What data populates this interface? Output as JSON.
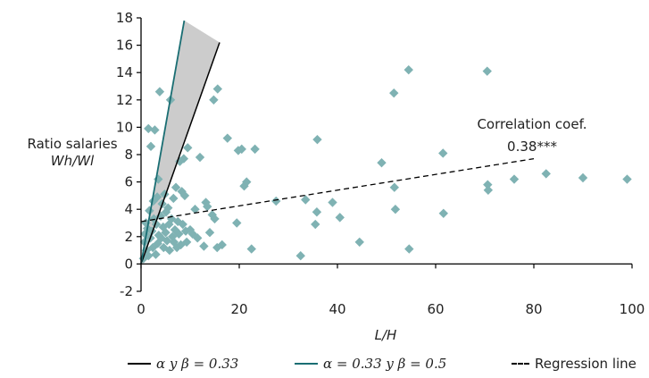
{
  "chart_data": {
    "type": "scatter",
    "xlabel": "L/H",
    "ylabel_line1": "Ratio salaries",
    "ylabel_line2": "Wh/Wl",
    "xlim": [
      0,
      100
    ],
    "ylim": [
      -2,
      18
    ],
    "x_ticks": [
      "0",
      "20",
      "40",
      "60",
      "80",
      "100"
    ],
    "y_ticks": [
      "-2",
      "0",
      "2",
      "4",
      "6",
      "8",
      "10",
      "12",
      "14",
      "16",
      "18"
    ],
    "grid": false,
    "legend_position": "bottom",
    "colors": {
      "points": "#7fb2b3",
      "line_033": "#000000",
      "line_033_05": "#1a6e73",
      "regression": "#000000",
      "shaded": "#cccccc"
    },
    "annotation": {
      "line1": "Correlation coef.",
      "line2": "0.38***"
    },
    "legend": [
      {
        "label": "α y β = 0.33",
        "style": "solid",
        "color": "#000000"
      },
      {
        "label": "α = 0.33 y β = 0.5",
        "style": "solid",
        "color": "#1a6e73"
      },
      {
        "label": "Regression line",
        "style": "dashed",
        "color": "#000000"
      }
    ],
    "lines": {
      "alpha_beta_033": {
        "x": [
          0,
          16
        ],
        "y": [
          0,
          16.2
        ]
      },
      "alpha_033_beta_05": {
        "x": [
          0,
          8.8
        ],
        "y": [
          0,
          17.8
        ]
      },
      "regression": {
        "x": [
          0,
          80
        ],
        "y": [
          3.1,
          7.7
        ]
      }
    },
    "series": [
      {
        "points": [
          [
            0.5,
            0.4
          ],
          [
            0.7,
            1.6
          ],
          [
            0.8,
            2.2
          ],
          [
            1.0,
            3.0
          ],
          [
            1.1,
            1.0
          ],
          [
            1.3,
            2.6
          ],
          [
            1.5,
            0.6
          ],
          [
            1.7,
            3.9
          ],
          [
            1.9,
            1.9
          ],
          [
            2.0,
            8.6
          ],
          [
            1.5,
            9.9
          ],
          [
            2.2,
            2.4
          ],
          [
            2.4,
            1.2
          ],
          [
            2.5,
            4.6
          ],
          [
            2.6,
            3.3
          ],
          [
            2.8,
            9.8
          ],
          [
            3.0,
            0.7
          ],
          [
            3.1,
            2.9
          ],
          [
            3.3,
            4.9
          ],
          [
            3.4,
            1.5
          ],
          [
            3.5,
            6.2
          ],
          [
            3.6,
            2.1
          ],
          [
            3.8,
            12.6
          ],
          [
            4.0,
            3.5
          ],
          [
            4.1,
            1.9
          ],
          [
            4.3,
            4.4
          ],
          [
            4.5,
            2.7
          ],
          [
            4.6,
            1.2
          ],
          [
            4.8,
            5.1
          ],
          [
            5.0,
            2.3
          ],
          [
            5.1,
            3.8
          ],
          [
            5.3,
            1.7
          ],
          [
            5.5,
            4.1
          ],
          [
            5.7,
            2.9
          ],
          [
            5.8,
            1.0
          ],
          [
            6.0,
            12.0
          ],
          [
            6.2,
            3.3
          ],
          [
            6.4,
            2.0
          ],
          [
            6.6,
            4.8
          ],
          [
            6.7,
            1.6
          ],
          [
            6.9,
            2.5
          ],
          [
            7.1,
            5.6
          ],
          [
            7.3,
            1.2
          ],
          [
            7.5,
            3.1
          ],
          [
            7.7,
            2.2
          ],
          [
            7.9,
            7.5
          ],
          [
            8.1,
            1.4
          ],
          [
            8.3,
            5.3
          ],
          [
            8.5,
            2.9
          ],
          [
            8.7,
            7.7
          ],
          [
            8.9,
            5.0
          ],
          [
            9.1,
            2.4
          ],
          [
            9.3,
            1.6
          ],
          [
            9.5,
            8.5
          ],
          [
            10.0,
            2.5
          ],
          [
            10.5,
            2.2
          ],
          [
            11.0,
            4.0
          ],
          [
            11.5,
            1.9
          ],
          [
            12.0,
            7.8
          ],
          [
            12.8,
            1.3
          ],
          [
            13.2,
            4.5
          ],
          [
            13.5,
            4.2
          ],
          [
            14.0,
            2.3
          ],
          [
            14.5,
            3.6
          ],
          [
            15.0,
            3.3
          ],
          [
            15.5,
            1.2
          ],
          [
            14.8,
            12.0
          ],
          [
            15.6,
            12.8
          ],
          [
            16.5,
            1.4
          ],
          [
            17.6,
            9.2
          ],
          [
            19.5,
            3.0
          ],
          [
            19.8,
            8.3
          ],
          [
            20.5,
            8.4
          ],
          [
            21.0,
            5.7
          ],
          [
            21.5,
            6.0
          ],
          [
            22.5,
            1.1
          ],
          [
            23.2,
            8.4
          ],
          [
            27.5,
            4.6
          ],
          [
            32.5,
            0.6
          ],
          [
            33.5,
            4.7
          ],
          [
            35.5,
            2.9
          ],
          [
            35.8,
            3.8
          ],
          [
            35.9,
            9.1
          ],
          [
            39.0,
            4.5
          ],
          [
            40.5,
            3.4
          ],
          [
            44.5,
            1.6
          ],
          [
            49.0,
            7.4
          ],
          [
            51.5,
            12.5
          ],
          [
            51.6,
            5.6
          ],
          [
            51.8,
            4.0
          ],
          [
            54.5,
            14.2
          ],
          [
            54.6,
            1.1
          ],
          [
            61.5,
            8.1
          ],
          [
            61.6,
            3.7
          ],
          [
            70.5,
            14.1
          ],
          [
            70.6,
            5.8
          ],
          [
            70.7,
            5.4
          ],
          [
            76.0,
            6.2
          ],
          [
            82.5,
            6.6
          ],
          [
            90.0,
            6.3
          ],
          [
            99.0,
            6.2
          ]
        ]
      }
    ]
  }
}
